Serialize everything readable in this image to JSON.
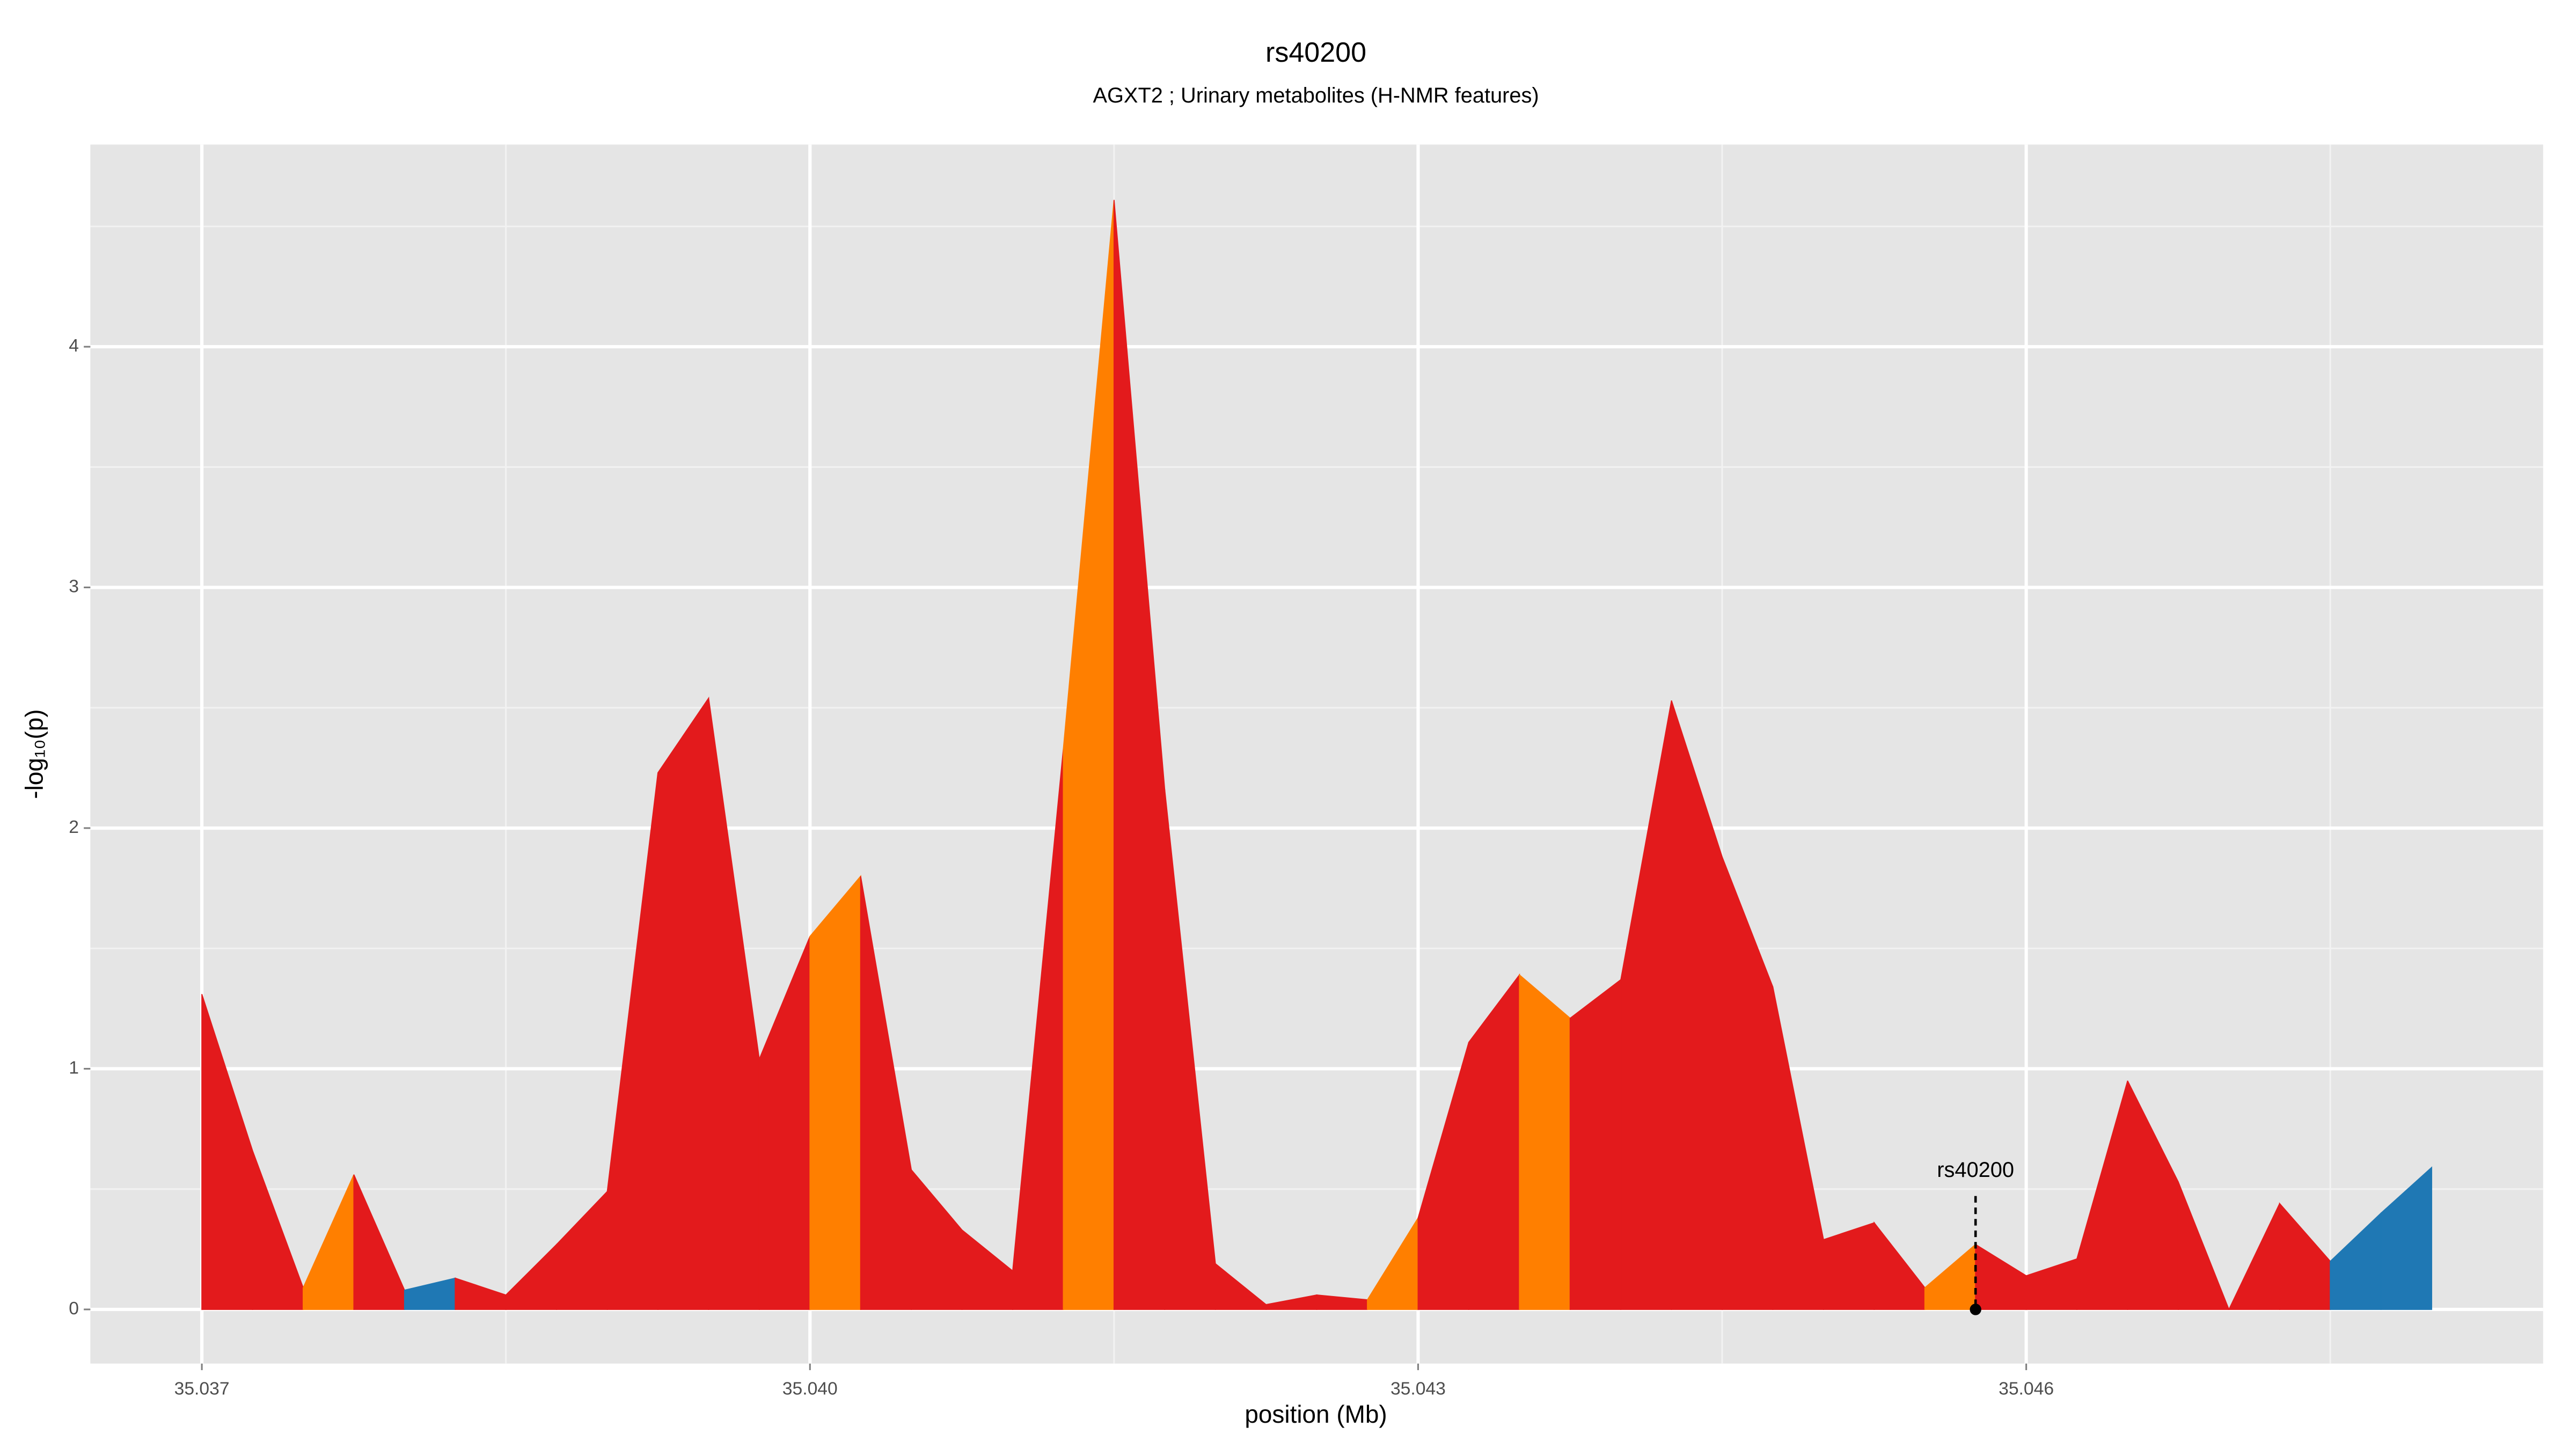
{
  "chart_data": {
    "type": "area",
    "title": "rs40200",
    "subtitle": "AGXT2 ; Urinary metabolites (H-NMR features)",
    "x_label": "position (Mb)",
    "y_label": "-log₁₀(p)",
    "x": [
      35.037,
      35.03725,
      35.0375,
      35.03775,
      35.038,
      35.03825,
      35.0385,
      35.03875,
      35.039,
      35.03925,
      35.0395,
      35.03975,
      35.04,
      35.04025,
      35.0405,
      35.04075,
      35.041,
      35.04125,
      35.0415,
      35.04175,
      35.042,
      35.04225,
      35.0425,
      35.04275,
      35.043,
      35.04325,
      35.0435,
      35.04375,
      35.044,
      35.04425,
      35.0445,
      35.04475,
      35.045,
      35.04525,
      35.0455,
      35.04575,
      35.046,
      35.04625,
      35.0465,
      35.04675,
      35.047,
      35.04725,
      35.0475,
      35.04775,
      35.048
    ],
    "y": [
      1.31,
      0.66,
      0.09,
      0.56,
      0.08,
      0.13,
      0.06,
      0.27,
      0.49,
      2.23,
      2.54,
      1.04,
      1.55,
      1.8,
      0.58,
      0.33,
      0.16,
      2.33,
      4.61,
      2.16,
      0.19,
      0.02,
      0.06,
      0.04,
      0.38,
      1.11,
      1.39,
      1.21,
      1.37,
      2.53,
      1.88,
      1.34,
      0.29,
      0.36,
      0.09,
      0.27,
      0.14,
      0.21,
      0.95,
      0.53,
      0.0,
      0.44,
      0.2,
      0.4,
      0.59
    ],
    "segment_colors": [
      "#e31a1c",
      "#e31a1c",
      "#ff7f00",
      "#e31a1c",
      "#1f78b4",
      "#e31a1c",
      "#e31a1c",
      "#e31a1c",
      "#e31a1c",
      "#e31a1c",
      "#e31a1c",
      "#e31a1c",
      "#ff7f00",
      "#e31a1c",
      "#e31a1c",
      "#e31a1c",
      "#e31a1c",
      "#ff7f00",
      "#e31a1c",
      "#e31a1c",
      "#e31a1c",
      "#e31a1c",
      "#e31a1c",
      "#ff7f00",
      "#e31a1c",
      "#e31a1c",
      "#ff7f00",
      "#e31a1c",
      "#e31a1c",
      "#e31a1c",
      "#e31a1c",
      "#e31a1c",
      "#e31a1c",
      "#e31a1c",
      "#ff7f00",
      "#e31a1c",
      "#e31a1c",
      "#e31a1c",
      "#e31a1c",
      "#e31a1c",
      "#e31a1c",
      "#e31a1c",
      "#1f78b4",
      "#1f78b4"
    ],
    "annotation": {
      "label": "rs40200",
      "x": 35.04575
    },
    "xlim": [
      35.03645,
      35.04855
    ],
    "ylim": [
      -0.225,
      4.84
    ],
    "xticks": [
      35.037,
      {
        "value": 35.04,
        "label": "35.040"
      },
      35.043,
      35.046
    ],
    "xminorticks": [
      35.0385,
      35.0415,
      35.0445,
      35.0475
    ],
    "yticks": [
      0,
      1,
      2,
      3,
      4
    ],
    "yminorticks": [
      0.5,
      1.5,
      2.5,
      3.5,
      4.5
    ],
    "grid": true
  }
}
